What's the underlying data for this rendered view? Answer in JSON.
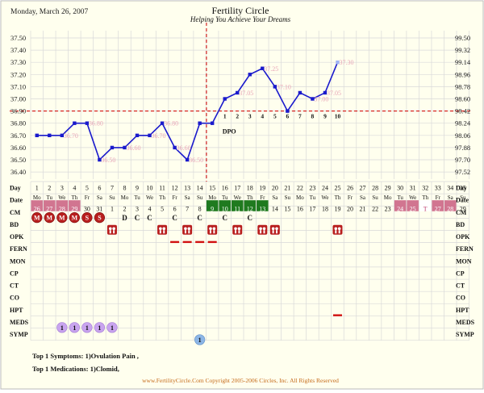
{
  "header": {
    "date": "Monday, March 26, 2007",
    "title": "Fertility Circle",
    "subtitle": "Helping You Achieve Your Dreams"
  },
  "colors": {
    "background": "#ffffee",
    "grid": "#d9d9d9",
    "line": "#1a1acc",
    "temp_label": "#e8a7b8",
    "coverline": "#d11111",
    "period_cell": "#d17590",
    "fertile_cell": "#1f7a1f",
    "bleeding_circle": "#b81e1e",
    "intercourse_icon": "#b81e1e",
    "meds_circle": "#c9a4ef",
    "symptom_circle": "#8db6e6",
    "hpt_dash": "#d11111",
    "opk_dash": "#d11111",
    "footer": "#c56a1a"
  },
  "chart_data": {
    "type": "line",
    "title": "Fertility Circle",
    "left_axis": [
      "37.50",
      "37.40",
      "37.30",
      "37.20",
      "37.10",
      "37.00",
      "36.90",
      "36.80",
      "36.70",
      "36.60",
      "36.50",
      "36.40"
    ],
    "right_axis": [
      "99.50",
      "99.32",
      "99.14",
      "98.96",
      "98.78",
      "98.60",
      "98.42",
      "98.24",
      "98.06",
      "97.88",
      "97.70",
      "97.52"
    ],
    "ylim": [
      36.35,
      37.5
    ],
    "coverline": 36.9,
    "ovulation_after_day": 15,
    "temps": [
      {
        "day": 1,
        "value": 36.7,
        "label": ""
      },
      {
        "day": 2,
        "value": 36.7,
        "label": ""
      },
      {
        "day": 3,
        "value": 36.7,
        "label": "36.70"
      },
      {
        "day": 4,
        "value": 36.8,
        "label": ""
      },
      {
        "day": 5,
        "value": 36.8,
        "label": "36.80"
      },
      {
        "day": 6,
        "value": 36.5,
        "label": "36.50"
      },
      {
        "day": 7,
        "value": 36.6,
        "label": ""
      },
      {
        "day": 8,
        "value": 36.6,
        "label": "36.60"
      },
      {
        "day": 9,
        "value": 36.7,
        "label": ""
      },
      {
        "day": 10,
        "value": 36.7,
        "label": "36.70"
      },
      {
        "day": 11,
        "value": 36.8,
        "label": "36.80"
      },
      {
        "day": 12,
        "value": 36.6,
        "label": "36.60"
      },
      {
        "day": 13,
        "value": 36.5,
        "label": "36.50"
      },
      {
        "day": 14,
        "value": 36.8,
        "label": ""
      },
      {
        "day": 15,
        "value": 36.8,
        "label": ""
      },
      {
        "day": 16,
        "value": 37.0,
        "label": ""
      },
      {
        "day": 17,
        "value": 37.05,
        "label": "37.05"
      },
      {
        "day": 18,
        "value": 37.2,
        "label": ""
      },
      {
        "day": 19,
        "value": 37.25,
        "label": "37.25"
      },
      {
        "day": 20,
        "value": 37.1,
        "label": "37.10"
      },
      {
        "day": 21,
        "value": 36.9,
        "label": ""
      },
      {
        "day": 22,
        "value": 37.05,
        "label": ""
      },
      {
        "day": 23,
        "value": 37.0,
        "label": "37.00"
      },
      {
        "day": 24,
        "value": 37.05,
        "label": "37.05"
      },
      {
        "day": 25,
        "value": 37.3,
        "label": "37.30"
      }
    ],
    "dpo_label": "DPO",
    "dpo_numbers": [
      "1",
      "2",
      "3",
      "4",
      "5",
      "6",
      "7",
      "8",
      "9",
      "10"
    ],
    "days": [
      "1",
      "2",
      "3",
      "4",
      "5",
      "6",
      "7",
      "8",
      "9",
      "10",
      "11",
      "12",
      "13",
      "14",
      "15",
      "16",
      "17",
      "18",
      "19",
      "20",
      "21",
      "22",
      "23",
      "24",
      "25",
      "26",
      "27",
      "28",
      "29",
      "30",
      "31",
      "32",
      "33",
      "34",
      "35"
    ],
    "weekdays": [
      "Mo",
      "Tu",
      "We",
      "Th",
      "Fr",
      "Sa",
      "Su",
      "Mo",
      "Tu",
      "We",
      "Th",
      "Fr",
      "Sa",
      "Su",
      "Mo",
      "Tu",
      "We",
      "Th",
      "Fr",
      "Sa",
      "Su",
      "Mo",
      "Tu",
      "We",
      "Th",
      "Fr",
      "Sa",
      "Su",
      "Mo",
      "Tu",
      "We",
      "Th",
      "Fr",
      "Sa",
      "Su"
    ],
    "dates": [
      "26",
      "27",
      "28",
      "29",
      "30",
      "31",
      "1",
      "2",
      "3",
      "4",
      "5",
      "6",
      "7",
      "8",
      "9",
      "10",
      "11",
      "12",
      "13",
      "14",
      "15",
      "16",
      "17",
      "18",
      "19",
      "20",
      "21",
      "22",
      "23",
      "24",
      "25",
      "T",
      "27",
      "28",
      "29"
    ],
    "date_highlight": [
      "period",
      "period",
      "period",
      "period",
      "",
      "",
      "",
      "",
      "",
      "",
      "",
      "",
      "",
      "",
      "fertile",
      "fertile",
      "fertile",
      "fertile",
      "fertile",
      "",
      "",
      "",
      "",
      "",
      "",
      "",
      "",
      "",
      "",
      "period",
      "period",
      "today",
      "period",
      "period",
      ""
    ],
    "row_labels": [
      "Day",
      "Date",
      "CM",
      "BD",
      "OPK",
      "FERN",
      "MON",
      "CP",
      "CT",
      "CO",
      "HPT",
      "MEDS",
      "SYMP"
    ],
    "cm": [
      {
        "day": 1,
        "text": "M"
      },
      {
        "day": 2,
        "text": "M"
      },
      {
        "day": 3,
        "text": "M"
      },
      {
        "day": 4,
        "text": "M"
      },
      {
        "day": 5,
        "text": "S"
      },
      {
        "day": 6,
        "text": "S"
      },
      {
        "day": 8,
        "text": "D"
      },
      {
        "day": 9,
        "text": "C"
      },
      {
        "day": 10,
        "text": "C"
      },
      {
        "day": 12,
        "text": "C"
      },
      {
        "day": 14,
        "text": "C"
      },
      {
        "day": 16,
        "text": "C"
      },
      {
        "day": 18,
        "text": "C"
      }
    ],
    "cm_bleeding_days": [
      1,
      2,
      3,
      4,
      5,
      6
    ],
    "bd_days": [
      7,
      11,
      13,
      15,
      17,
      19,
      20,
      25
    ],
    "opk_days": [
      12,
      13,
      14,
      15
    ],
    "hpt_days": [
      25
    ],
    "meds": [
      {
        "day": 3,
        "text": "1"
      },
      {
        "day": 4,
        "text": "1"
      },
      {
        "day": 5,
        "text": "1"
      },
      {
        "day": 6,
        "text": "1"
      },
      {
        "day": 7,
        "text": "1"
      }
    ],
    "symp": [
      {
        "day": 14,
        "text": "1"
      }
    ]
  },
  "footer": {
    "symptoms": "Top 1 Symptoms: 1)Ovulation Pain ,",
    "medications": "Top 1 Medications: 1)Clomid,",
    "copyright": "www.FertilityCircle.Com Copyright 2005-2006 Circles, Inc. All Rights Reserved"
  }
}
